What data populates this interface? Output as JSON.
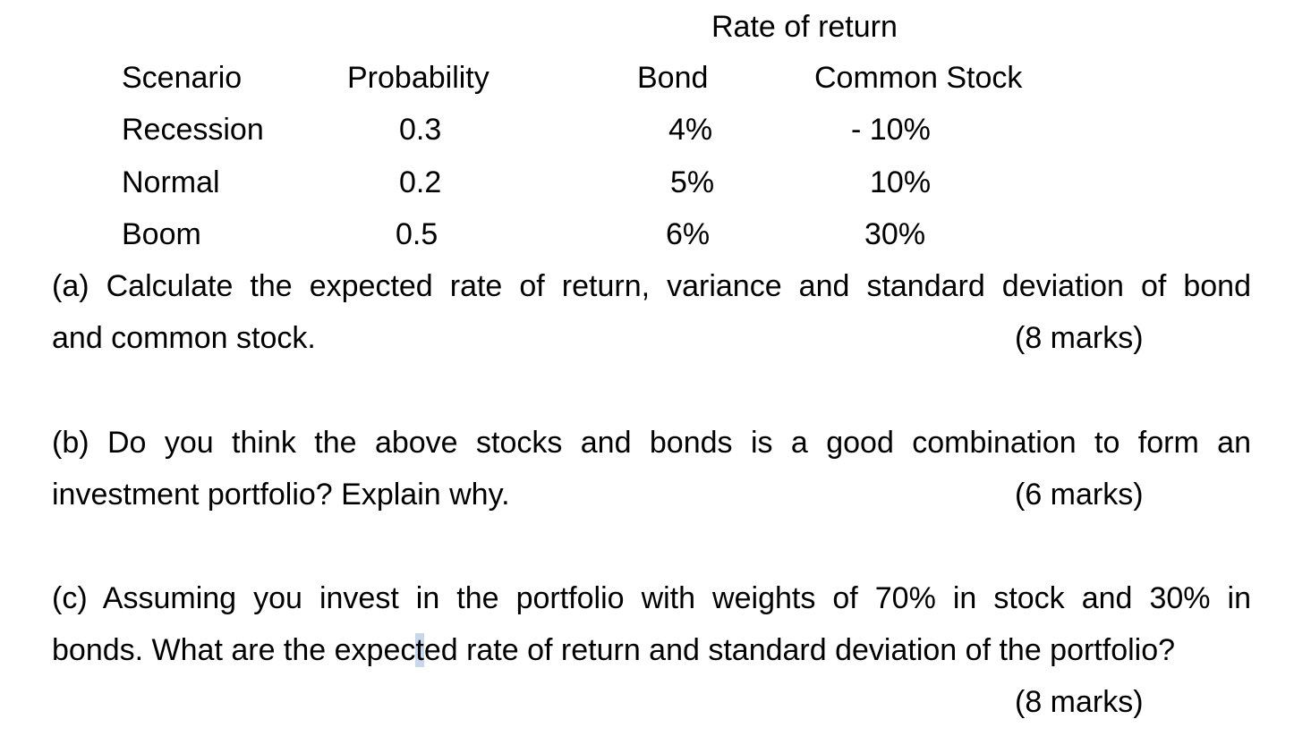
{
  "table": {
    "group_header": "Rate of return",
    "columns": [
      "Scenario",
      "Probability",
      "Bond",
      "Common Stock"
    ],
    "rows": [
      [
        "Recession",
        "0.3",
        "4%",
        "- 10%"
      ],
      [
        "Normal",
        "0.2",
        "5%",
        "10%"
      ],
      [
        "Boom",
        "0.5",
        "6%",
        "30%"
      ]
    ]
  },
  "questions": [
    {
      "line1": "(a) Calculate the expected rate of return, variance and standard deviation of bond",
      "line2": "and common stock.",
      "marks": "(8 marks)"
    },
    {
      "line1": "(b) Do you think the above stocks and bonds is a good combination to form an",
      "line2": "investment portfolio? Explain why.",
      "marks": "(6 marks)"
    },
    {
      "line1": "(c) Assuming you invest in the portfolio with weights of 70% in stock and 30% in",
      "line2_before": "bonds. What are the expec",
      "line2_highlight": "t",
      "line2_after": "ed rate of return and standard deviation of the portfolio?",
      "marks": "(8 marks)"
    }
  ]
}
